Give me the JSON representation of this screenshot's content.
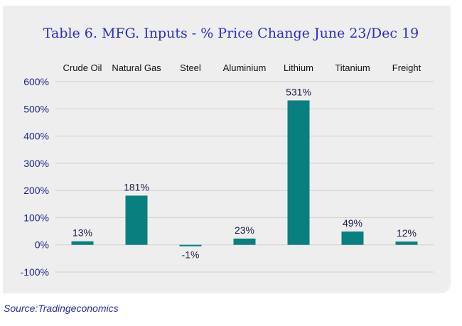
{
  "source": "Source:Tradingeconomics",
  "chart_data": {
    "type": "bar",
    "title": "Table 6. MFG. Inputs - % Price Change June 23/Dec 19",
    "categories": [
      "Crude Oil",
      "Natural Gas",
      "Steel",
      "Aluminium",
      "Lithium",
      "Titanium",
      "Freight"
    ],
    "values": [
      13,
      181,
      -1,
      23,
      531,
      49,
      12
    ],
    "data_labels": [
      "13%",
      "181%",
      "-1%",
      "23%",
      "531%",
      "49%",
      "12%"
    ],
    "y_ticks": [
      "600%",
      "500%",
      "400%",
      "300%",
      "200%",
      "100%",
      "0%",
      "-100%"
    ],
    "ylim": [
      -100,
      600
    ],
    "category_position": "top",
    "grid": true,
    "colors": {
      "bar": "#0a7f7f",
      "grid": "#cfcfcf",
      "axis_text": "#1f2590",
      "category_text": "#111111",
      "title": "#2a2fbf"
    }
  }
}
